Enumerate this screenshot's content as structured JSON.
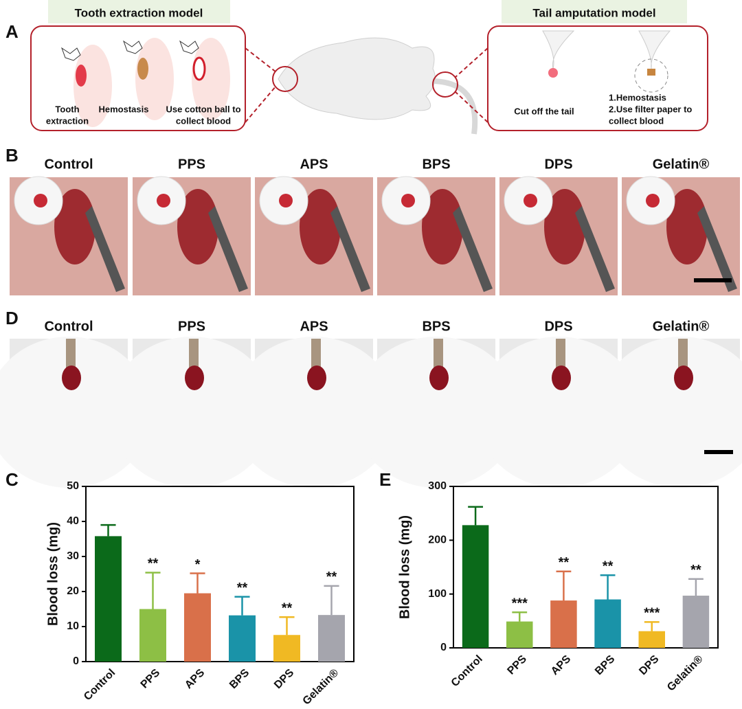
{
  "panel_a": {
    "letter": "A",
    "tooth_model": {
      "title": "Tooth extraction model",
      "steps": [
        [
          "Tooth",
          "extraction"
        ],
        [
          "Hemostasis"
        ],
        [
          "Use cotton ball to",
          "collect blood"
        ]
      ]
    },
    "tail_model": {
      "title": "Tail amputation model",
      "steps": [
        [
          "Cut off the tail"
        ],
        [
          "1.Hemostasis",
          "2.Use filter paper to",
          "collect blood"
        ]
      ]
    }
  },
  "panel_b": {
    "letter": "B",
    "labels": [
      "Control",
      "PPS",
      "APS",
      "BPS",
      "DPS",
      "Gelatin®"
    ]
  },
  "panel_d": {
    "letter": "D",
    "labels": [
      "Control",
      "PPS",
      "APS",
      "BPS",
      "DPS",
      "Gelatin®"
    ]
  },
  "chart_data": [
    {
      "type": "bar",
      "panel": "C",
      "y_label": "Blood loss (mg)",
      "categories": [
        "Control",
        "PPS",
        "APS",
        "BPS",
        "DPS",
        "Gelatin®"
      ],
      "series": [
        {
          "values": [
            35.8,
            15,
            19.5,
            13.2,
            7.6,
            13.3
          ],
          "errors": [
            3.2,
            10.4,
            5.7,
            5.3,
            5.1,
            8.3
          ],
          "colors": [
            "#0b6a1a",
            "#8dbf45",
            "#d9704a",
            "#1a93a8",
            "#f0b923",
            "#a5a5ad"
          ],
          "annotations": [
            null,
            "**",
            "*",
            "**",
            "**",
            "**"
          ]
        }
      ],
      "ylim": [
        0,
        50
      ],
      "yticks": [
        0,
        10,
        20,
        30,
        40,
        50
      ]
    },
    {
      "type": "bar",
      "panel": "E",
      "y_label": "Blood loss (mg)",
      "categories": [
        "Control",
        "PPS",
        "APS",
        "BPS",
        "DPS",
        "Gelatin®"
      ],
      "series": [
        {
          "values": [
            228,
            49,
            88,
            90,
            31,
            97
          ],
          "errors": [
            34,
            17,
            54,
            45,
            17,
            31
          ],
          "colors": [
            "#0b6a1a",
            "#8dbf45",
            "#d9704a",
            "#1a93a8",
            "#f0b923",
            "#a5a5ad"
          ],
          "annotations": [
            null,
            "***",
            "**",
            "**",
            "***",
            "**"
          ]
        }
      ],
      "ylim": [
        0,
        300
      ],
      "yticks": [
        0,
        100,
        200,
        300
      ]
    }
  ]
}
